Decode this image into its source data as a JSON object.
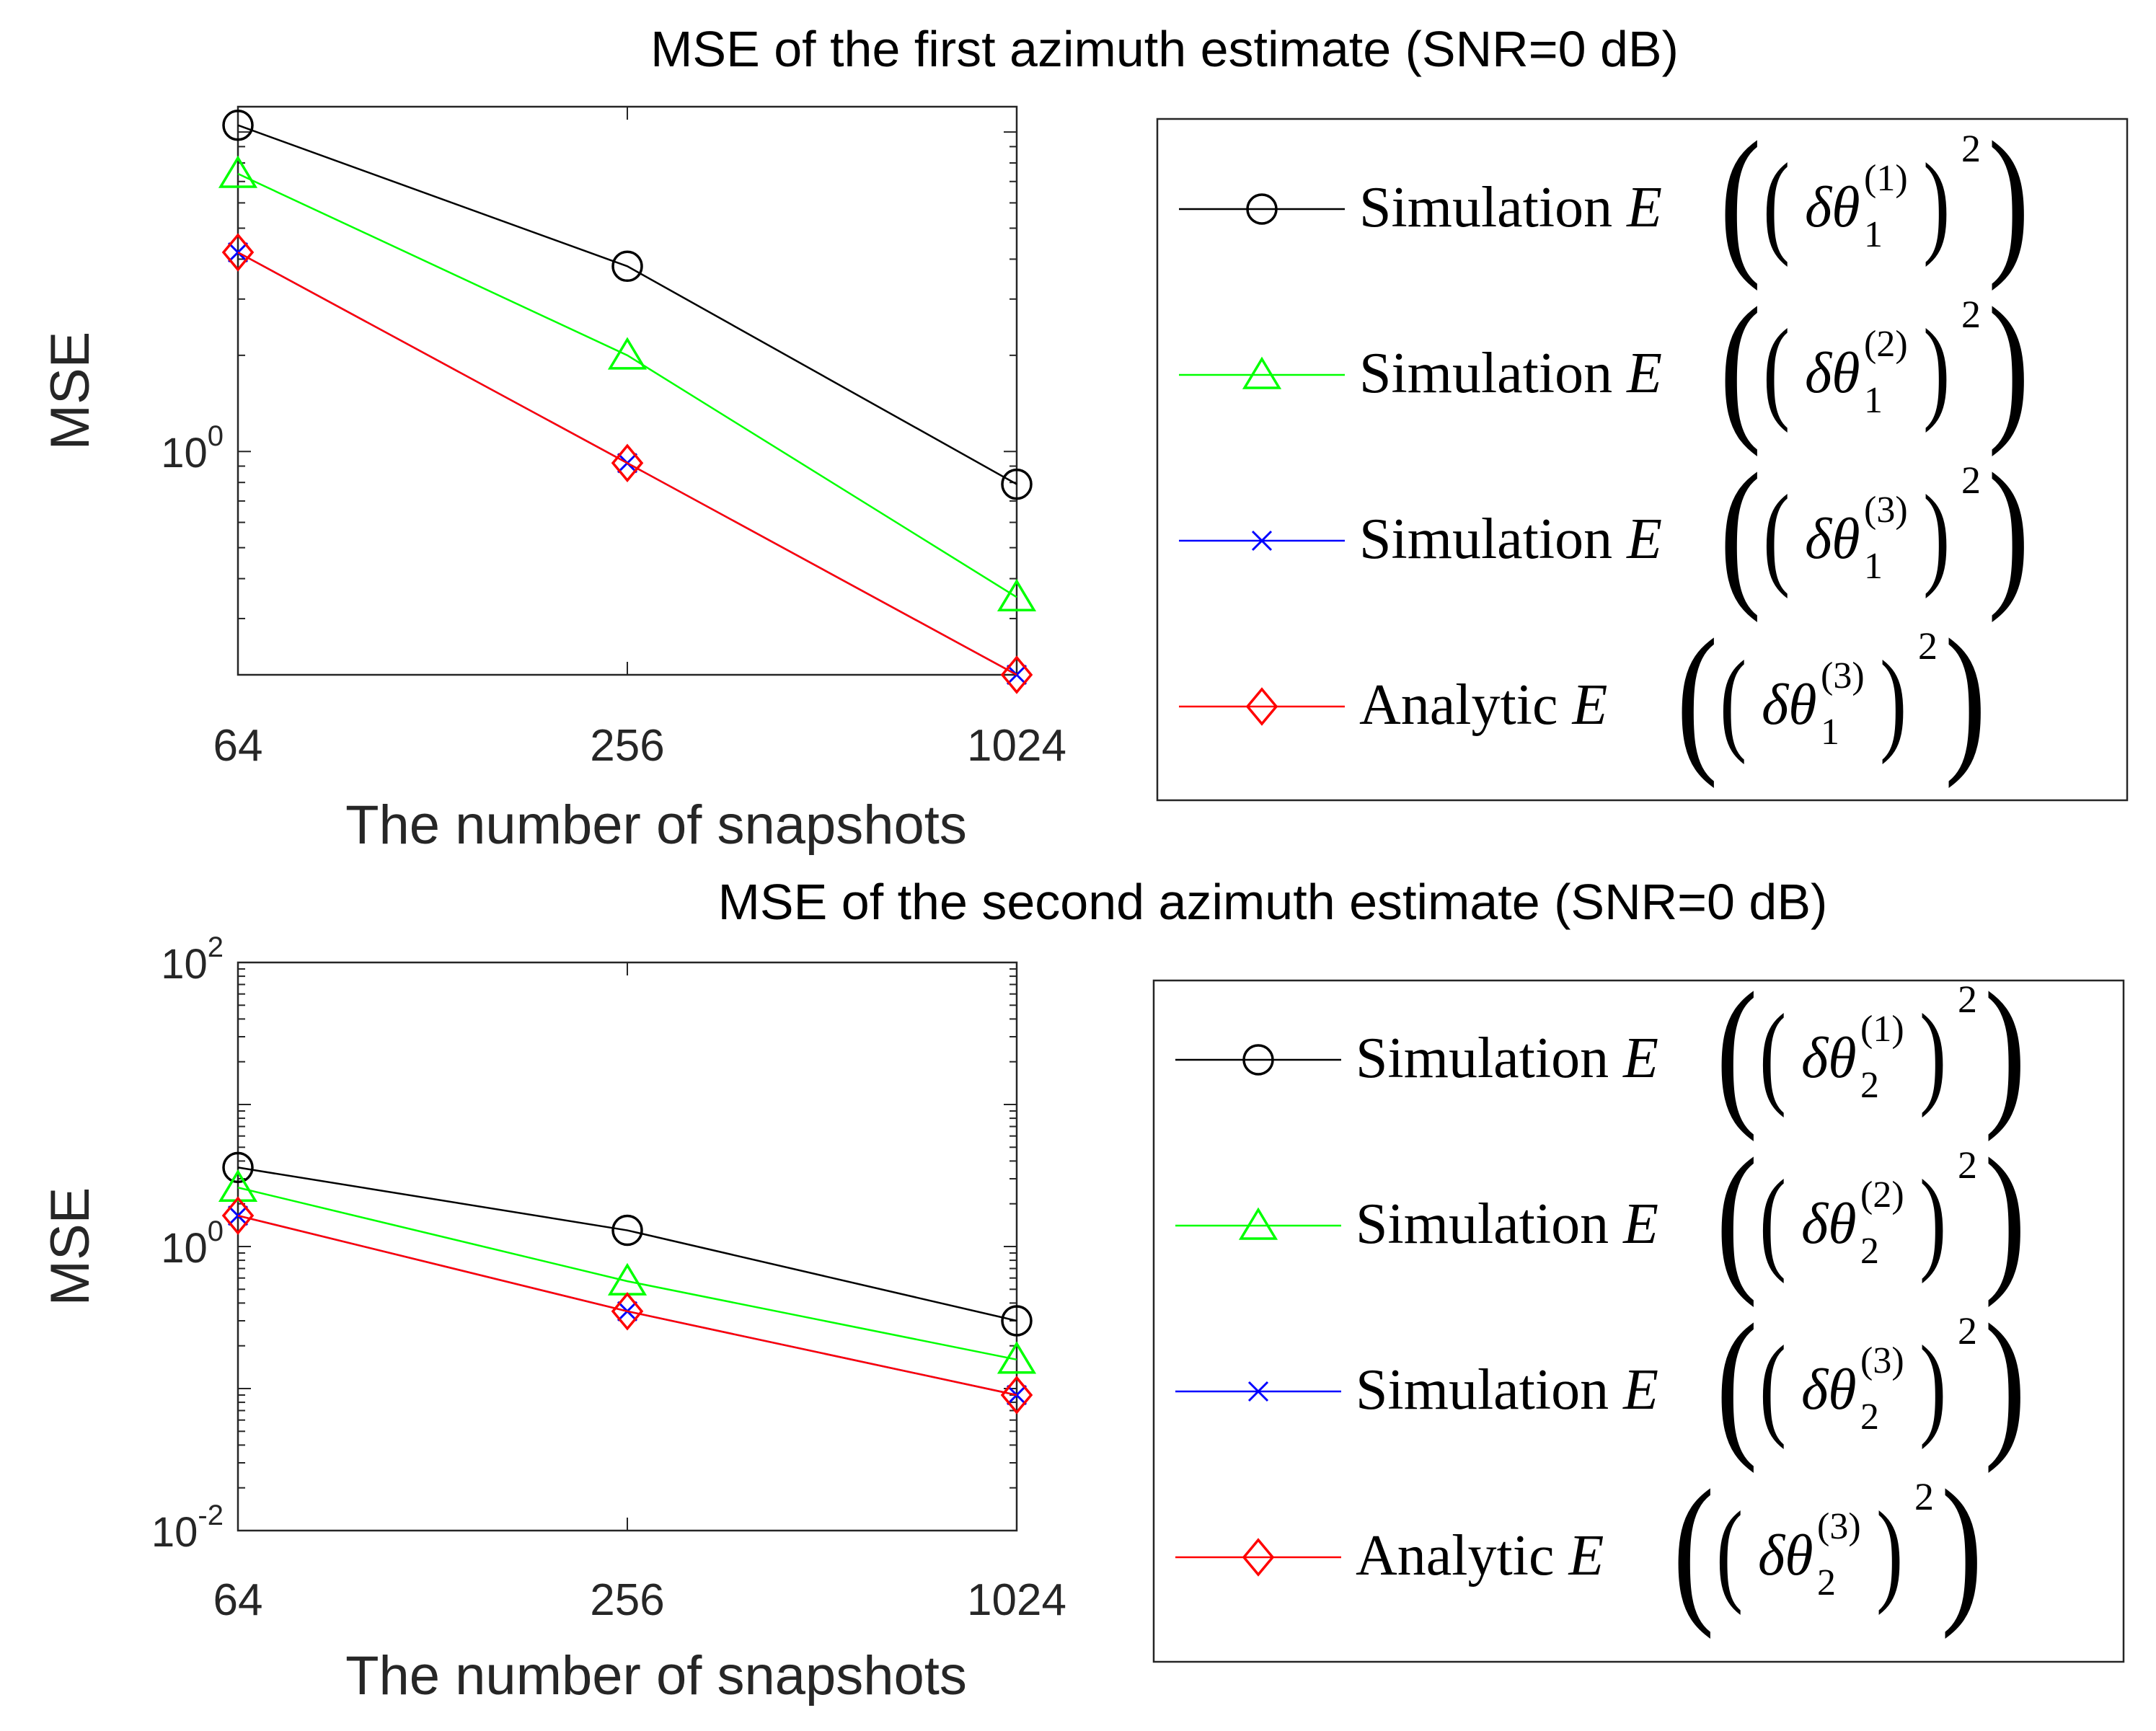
{
  "chart_data": [
    {
      "type": "line",
      "title": "MSE of the first azimuth estimate (SNR=0 dB)",
      "xlabel": "The number of snapshots",
      "ylabel": "MSE",
      "x": [
        64,
        256,
        1024
      ],
      "x_tick_labels": [
        "64",
        "256",
        "1024"
      ],
      "yscale": "log",
      "ylim": [
        0.2,
        12
      ],
      "y_ticks": [
        {
          "value": 1,
          "base": "10",
          "exp": "0"
        }
      ],
      "grid": false,
      "legend_location": "outside-right",
      "series": [
        {
          "name": "Simulation E((δθ1^(1))^2)",
          "method": "Simulation",
          "sub": "1",
          "sup": "(1)",
          "color": "#000000",
          "marker": "circle",
          "values": [
            10.5,
            3.8,
            0.79
          ]
        },
        {
          "name": "Simulation E((δθ1^(2))^2)",
          "method": "Simulation",
          "sub": "1",
          "sup": "(2)",
          "color": "#00ff00",
          "marker": "triangle",
          "values": [
            7.4,
            2.0,
            0.35
          ]
        },
        {
          "name": "Simulation E((δθ1^(3))^2)",
          "method": "Simulation",
          "sub": "1",
          "sup": "(3)",
          "color": "#0000ff",
          "marker": "x",
          "values": [
            4.2,
            0.92,
            0.2
          ]
        },
        {
          "name": "Analytic E((δθ1^(3))^2)",
          "method": "Analytic",
          "sub": "1",
          "sup": "(3)",
          "color": "#ff0000",
          "marker": "diamond",
          "values": [
            4.2,
            0.92,
            0.2
          ]
        }
      ]
    },
    {
      "type": "line",
      "title": "MSE of the second azimuth estimate (SNR=0 dB)",
      "xlabel": "The number of snapshots",
      "ylabel": "MSE",
      "x": [
        64,
        256,
        1024
      ],
      "x_tick_labels": [
        "64",
        "256",
        "1024"
      ],
      "yscale": "log",
      "ylim": [
        0.01,
        100
      ],
      "y_ticks": [
        {
          "value": 0.01,
          "base": "10",
          "exp": "-2"
        },
        {
          "value": 1,
          "base": "10",
          "exp": "0"
        },
        {
          "value": 100,
          "base": "10",
          "exp": "2"
        }
      ],
      "grid": false,
      "legend_location": "outside-right",
      "series": [
        {
          "name": "Simulation E((δθ2^(1))^2)",
          "method": "Simulation",
          "sub": "2",
          "sup": "(1)",
          "color": "#000000",
          "marker": "circle",
          "values": [
            3.6,
            1.3,
            0.3
          ]
        },
        {
          "name": "Simulation E((δθ2^(2))^2)",
          "method": "Simulation",
          "sub": "2",
          "sup": "(2)",
          "color": "#00ff00",
          "marker": "triangle",
          "values": [
            2.6,
            0.57,
            0.16
          ]
        },
        {
          "name": "Simulation E((δθ2^(3))^2)",
          "method": "Simulation",
          "sub": "2",
          "sup": "(3)",
          "color": "#0000ff",
          "marker": "x",
          "values": [
            1.65,
            0.35,
            0.09
          ]
        },
        {
          "name": "Analytic E((δθ2^(3))^2)",
          "method": "Analytic",
          "sub": "2",
          "sup": "(3)",
          "color": "#ff0000",
          "marker": "diamond",
          "values": [
            1.65,
            0.35,
            0.09
          ]
        }
      ]
    }
  ]
}
